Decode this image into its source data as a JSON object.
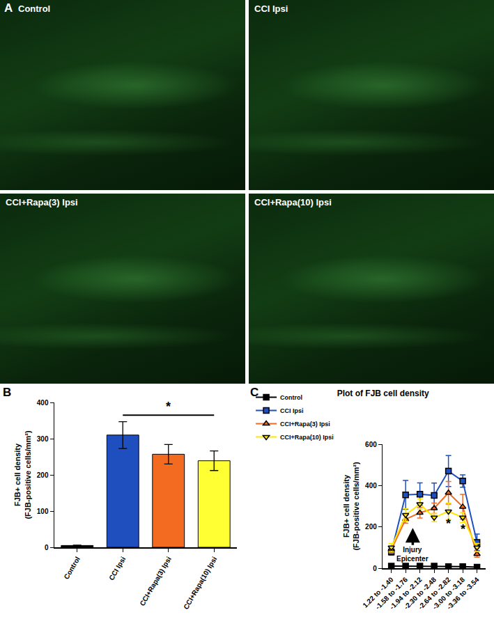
{
  "image_panel": {
    "panel_label": "A",
    "images": [
      {
        "label": "Control"
      },
      {
        "label": "CCI Ipsi"
      },
      {
        "label": "CCI+Rapa(3) Ipsi"
      },
      {
        "label": "CCI+Rapa(10) Ipsi"
      }
    ]
  },
  "chart_data": [
    {
      "panel_label": "B",
      "type": "bar",
      "y_label": "FJB+ cell density\n(FJB-positive cells/mm²)",
      "categories": [
        "Control",
        "CCI Ipsi",
        "CCI+Rapa(3) Ipsi",
        "CCI+Rapa(10) Ipsi"
      ],
      "values": [
        5,
        310,
        257,
        239
      ],
      "errors": [
        1,
        37,
        27,
        27
      ],
      "colors": [
        "#000000",
        "#1f4fbf",
        "#f26b21",
        "#ffff33"
      ],
      "ylim": [
        0,
        400
      ],
      "yticks": [
        0,
        100,
        200,
        300,
        400
      ],
      "grid": false,
      "annotations": [
        {
          "text": "*",
          "x0": 1,
          "x1": 3,
          "y": 365
        }
      ]
    },
    {
      "panel_label": "C",
      "type": "line",
      "title": "Plot of FJB cell density",
      "y_label": "FJB+ cell density\n(FJB-positive cells/mm²)",
      "categories": [
        "1.22 to -1.40",
        "-1.58 to -1.76",
        "-1.94 to -2.12",
        "-2.30 to -2.48",
        "-2.64 to -2.82",
        "-3.00 to -3.18",
        "-3.36 to -3.54"
      ],
      "series": [
        {
          "name": "Control",
          "color": "#000000",
          "marker": "square",
          "values": [
            10,
            10,
            10,
            10,
            8,
            8,
            5
          ],
          "errors": [
            3,
            3,
            3,
            3,
            3,
            3,
            2
          ]
        },
        {
          "name": "CCI Ipsi",
          "color": "#1f4fbf",
          "marker": "square",
          "values": [
            78,
            355,
            358,
            352,
            470,
            422,
            125
          ],
          "errors": [
            15,
            70,
            55,
            60,
            75,
            30,
            40
          ]
        },
        {
          "name": "CCI+Rapa(3) Ipsi",
          "color": "#f26b21",
          "marker": "triangle-up",
          "values": [
            90,
            237,
            268,
            290,
            365,
            297,
            68
          ],
          "errors": [
            15,
            20,
            25,
            25,
            55,
            60,
            15
          ]
        },
        {
          "name": "CCI+Rapa(10) Ipsi",
          "color": "#ffe600",
          "marker": "triangle-down",
          "values": [
            100,
            258,
            310,
            245,
            275,
            245,
            100
          ],
          "errors": [
            20,
            30,
            25,
            20,
            40,
            25,
            20
          ]
        }
      ],
      "ylim": [
        0,
        600
      ],
      "yticks": [
        0,
        200,
        400,
        600
      ],
      "grid": false,
      "legend": "top-left",
      "annotations": [
        {
          "text": "Injury\nEpicenter",
          "x": 1.5,
          "y": 195,
          "arrow": true
        },
        {
          "text": "*",
          "x": 4,
          "y": 215
        },
        {
          "text": "*",
          "x": 5,
          "y": 190
        }
      ]
    }
  ]
}
